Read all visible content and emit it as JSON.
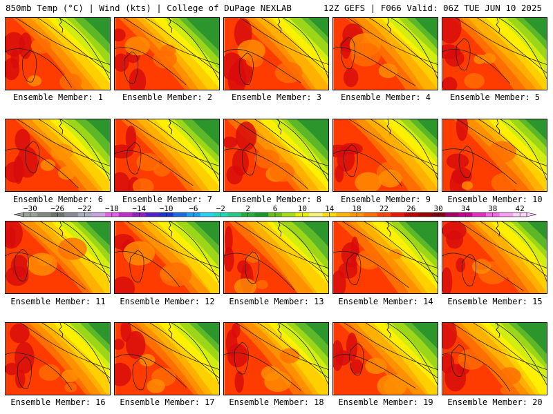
{
  "header": {
    "left": "850mb Temp (°C) | Wind (kts) | College of DuPage NEXLAB",
    "right": "12Z GEFS | F066 Valid: 06Z TUE JUN 10 2025"
  },
  "panels": [
    {
      "label": "Ensemble Member: 1"
    },
    {
      "label": "Ensemble Member: 2"
    },
    {
      "label": "Ensemble Member: 3"
    },
    {
      "label": "Ensemble Member: 4"
    },
    {
      "label": "Ensemble Member: 5"
    },
    {
      "label": "Ensemble Member: 6"
    },
    {
      "label": "Ensemble Member: 7"
    },
    {
      "label": "Ensemble Member: 8"
    },
    {
      "label": "Ensemble Member: 9"
    },
    {
      "label": "Ensemble Member: 10"
    },
    {
      "label": "Ensemble Member: 11"
    },
    {
      "label": "Ensemble Member: 12"
    },
    {
      "label": "Ensemble Member: 13"
    },
    {
      "label": "Ensemble Member: 14"
    },
    {
      "label": "Ensemble Member: 15"
    },
    {
      "label": "Ensemble Member: 16"
    },
    {
      "label": "Ensemble Member: 17"
    },
    {
      "label": "Ensemble Member: 18"
    },
    {
      "label": "Ensemble Member: 19"
    },
    {
      "label": "Ensemble Member: 20"
    }
  ],
  "colorbar": {
    "ticks": [
      "−30",
      "−26",
      "−22",
      "−18",
      "−14",
      "−10",
      "−6",
      "−2",
      "2",
      "6",
      "10",
      "14",
      "18",
      "22",
      "26",
      "30",
      "34",
      "38",
      "42"
    ],
    "colors": [
      "#9aa39a",
      "#818a81",
      "#6c726c",
      "#878a92",
      "#a7adbd",
      "#c9a3e0",
      "#e060e8",
      "#c22cc8",
      "#8f20c0",
      "#5020c8",
      "#1c32c8",
      "#1a6ae0",
      "#1aa0f0",
      "#28d2f0",
      "#20d8b8",
      "#28c888",
      "#20b040",
      "#18982c",
      "#68c018",
      "#a6dc18",
      "#e8f000",
      "#f6f07c",
      "#ffdc00",
      "#ffb400",
      "#ff9400",
      "#ff6e00",
      "#ff4400",
      "#e81808",
      "#c00000",
      "#9a0000",
      "#7c0010",
      "#a00060",
      "#c40090",
      "#e030c0",
      "#f06ae8",
      "#f8a0f0",
      "#fcd2fc"
    ]
  }
}
